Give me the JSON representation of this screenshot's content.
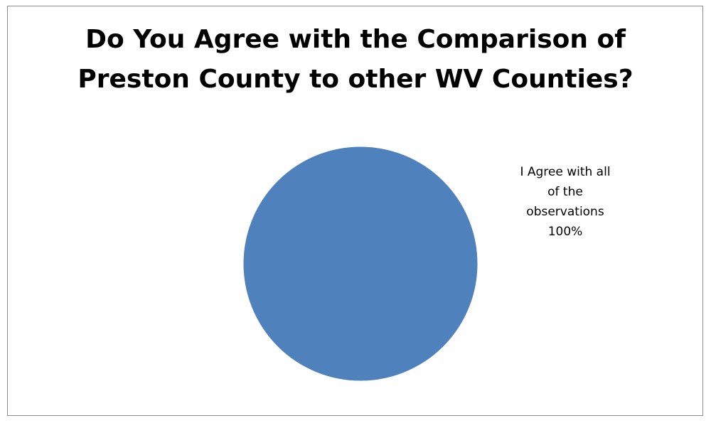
{
  "chart_data": {
    "type": "pie",
    "title": "Do You Agree with the Comparison of Preston County to other WV Counties?",
    "title_lines": [
      "Do You Agree with the Comparison of",
      "Preston County to other WV Counties?"
    ],
    "slices": [
      {
        "label": "I Agree with all of the observations",
        "label_lines": [
          "I Agree with all",
          "of the",
          "observations"
        ],
        "value": 100,
        "percent_label": "100%",
        "color": "#4f81bd"
      }
    ],
    "legend": "none",
    "data_labels": "outside-right"
  }
}
